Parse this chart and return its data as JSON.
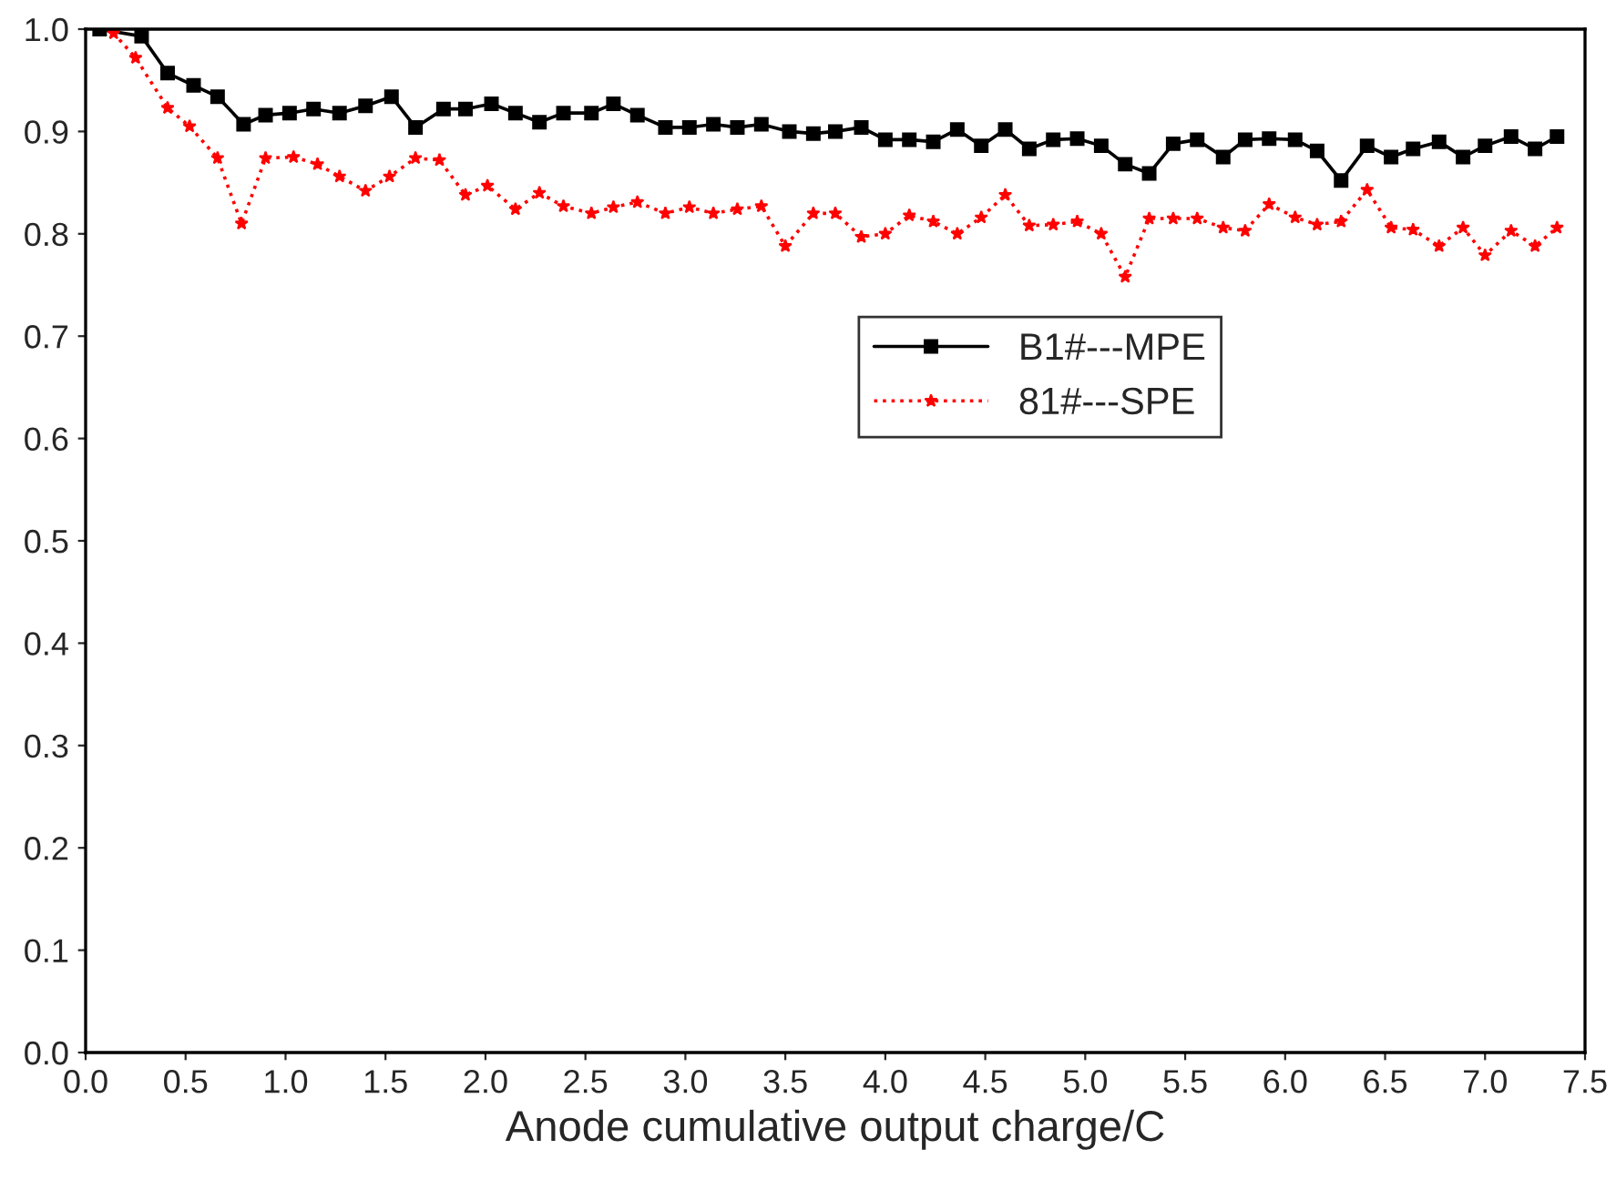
{
  "chart_data": {
    "type": "line",
    "xlabel": "Anode cumulative output charge/C",
    "xlim": [
      0,
      7.5
    ],
    "xticks": [
      {
        "value": 0,
        "label": "0.0"
      },
      0.5,
      {
        "value": 1,
        "label": "1.0"
      },
      1.5,
      {
        "value": 2,
        "label": "2.0"
      },
      2.5,
      {
        "value": 3,
        "label": "3.0"
      },
      3.5,
      {
        "value": 4,
        "label": "4.0"
      },
      4.5,
      {
        "value": 5,
        "label": "5.0"
      },
      5.5,
      {
        "value": 6,
        "label": "6.0"
      },
      6.5,
      {
        "value": 7,
        "label": "7.0"
      },
      7.5
    ],
    "ylim": [
      0,
      1
    ],
    "yticks": [
      {
        "value": 0,
        "label": "0.0"
      },
      0.1,
      0.2,
      0.3,
      0.4,
      0.5,
      0.6,
      0.7,
      0.8,
      0.9,
      {
        "value": 1,
        "label": "1.0"
      }
    ],
    "grid": false,
    "legend": "center right",
    "series": [
      {
        "name": "B1#---MPE",
        "color": "#000000",
        "marker": "square",
        "line_style": "solid",
        "x": [
          0.07,
          0.28,
          0.41,
          0.54,
          0.66,
          0.79,
          0.9,
          1.02,
          1.14,
          1.27,
          1.4,
          1.53,
          1.65,
          1.79,
          1.9,
          2.03,
          2.15,
          2.27,
          2.39,
          2.53,
          2.64,
          2.76,
          2.9,
          3.02,
          3.14,
          3.26,
          3.38,
          3.52,
          3.64,
          3.75,
          3.88,
          4.0,
          4.12,
          4.24,
          4.36,
          4.48,
          4.6,
          4.72,
          4.84,
          4.96,
          5.08,
          5.2,
          5.32,
          5.44,
          5.56,
          5.69,
          5.8,
          5.92,
          6.05,
          6.16,
          6.28,
          6.41,
          6.53,
          6.64,
          6.77,
          6.89,
          7.0,
          7.13,
          7.25,
          7.36
        ],
        "values": [
          1.0,
          0.993,
          0.957,
          0.945,
          0.934,
          0.907,
          0.916,
          0.918,
          0.922,
          0.918,
          0.925,
          0.934,
          0.904,
          0.922,
          0.922,
          0.927,
          0.918,
          0.909,
          0.918,
          0.918,
          0.927,
          0.916,
          0.904,
          0.904,
          0.907,
          0.904,
          0.907,
          0.9,
          0.898,
          0.9,
          0.904,
          0.892,
          0.892,
          0.89,
          0.902,
          0.886,
          0.902,
          0.883,
          0.892,
          0.893,
          0.886,
          0.868,
          0.859,
          0.888,
          0.892,
          0.875,
          0.892,
          0.893,
          0.892,
          0.881,
          0.852,
          0.886,
          0.875,
          0.883,
          0.89,
          0.875,
          0.886,
          0.895,
          0.883,
          0.895
        ]
      },
      {
        "name": "81#---SPE",
        "color": "#ff0000",
        "marker": "star",
        "line_style": "dotted",
        "x": [
          0.14,
          0.25,
          0.41,
          0.52,
          0.66,
          0.78,
          0.9,
          1.04,
          1.16,
          1.27,
          1.4,
          1.52,
          1.65,
          1.77,
          1.9,
          2.01,
          2.15,
          2.27,
          2.39,
          2.53,
          2.64,
          2.76,
          2.9,
          3.02,
          3.14,
          3.26,
          3.38,
          3.5,
          3.64,
          3.75,
          3.88,
          4.0,
          4.12,
          4.24,
          4.36,
          4.48,
          4.6,
          4.72,
          4.84,
          4.96,
          5.08,
          5.2,
          5.32,
          5.44,
          5.56,
          5.69,
          5.8,
          5.92,
          6.05,
          6.16,
          6.28,
          6.41,
          6.53,
          6.64,
          6.77,
          6.89,
          7.0,
          7.13,
          7.25,
          7.36
        ],
        "values": [
          0.996,
          0.972,
          0.923,
          0.905,
          0.874,
          0.81,
          0.874,
          0.875,
          0.868,
          0.856,
          0.842,
          0.856,
          0.874,
          0.872,
          0.838,
          0.847,
          0.824,
          0.84,
          0.827,
          0.82,
          0.826,
          0.831,
          0.82,
          0.826,
          0.82,
          0.824,
          0.827,
          0.788,
          0.82,
          0.82,
          0.797,
          0.8,
          0.818,
          0.812,
          0.8,
          0.816,
          0.838,
          0.808,
          0.809,
          0.812,
          0.8,
          0.758,
          0.815,
          0.815,
          0.815,
          0.806,
          0.803,
          0.829,
          0.816,
          0.809,
          0.812,
          0.843,
          0.806,
          0.804,
          0.788,
          0.806,
          0.779,
          0.803,
          0.788,
          0.806
        ]
      }
    ]
  }
}
